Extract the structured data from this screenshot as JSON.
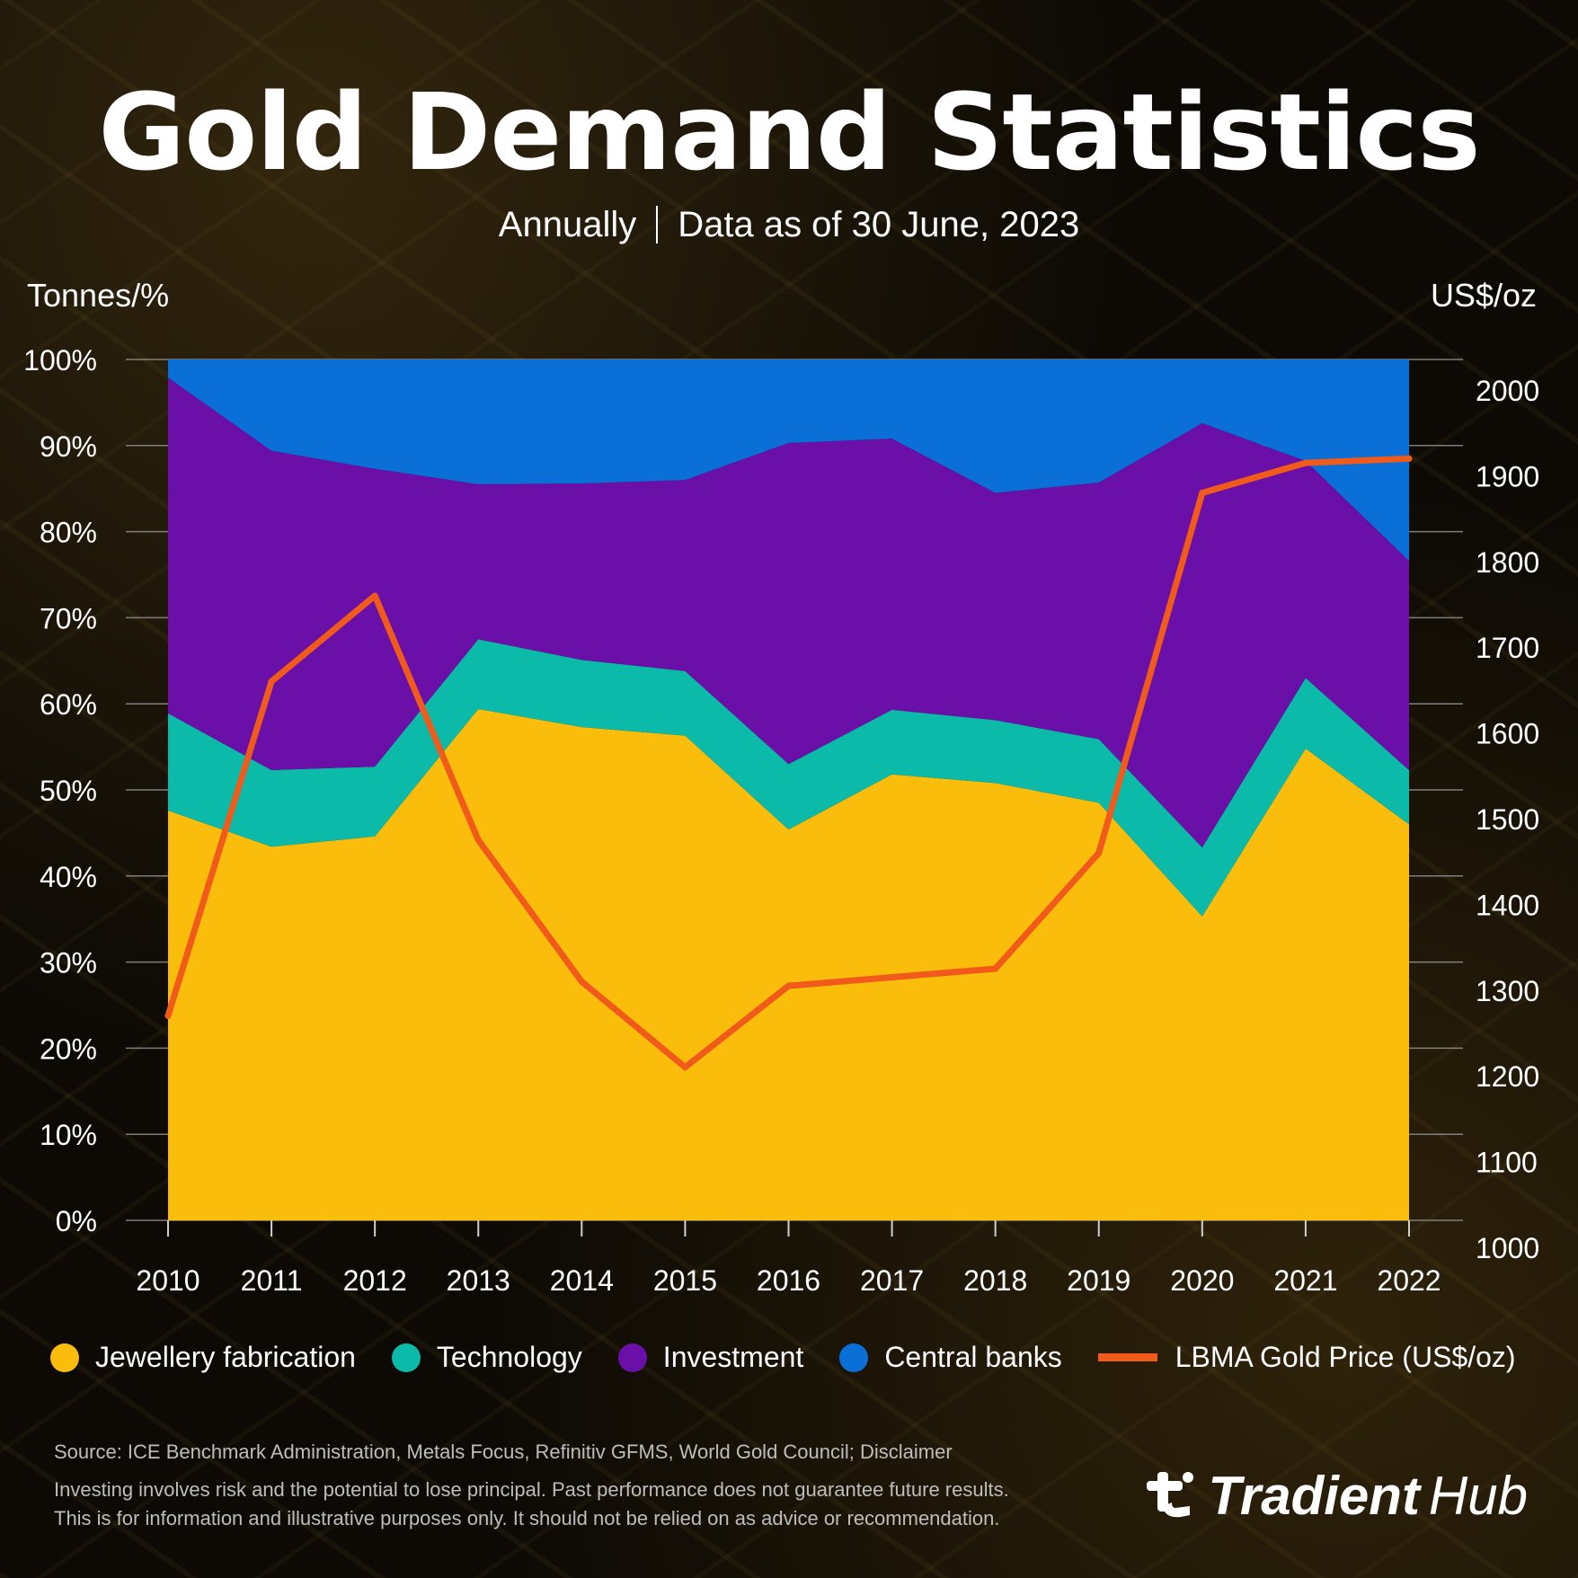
{
  "title": "Gold Demand Statistics",
  "subtitle_left": "Annually",
  "subtitle_right": "Data as of 30 June, 2023",
  "left_axis_unit": "Tonnes/%",
  "right_axis_unit": "US$/oz",
  "colors": {
    "jewellery": "#fbbd0b",
    "technology": "#0bbaa8",
    "investment": "#6a10a8",
    "central_banks": "#0a6fd6",
    "price_line": "#f05a1a"
  },
  "legend": [
    {
      "name": "Jewellery fabrication",
      "color": "#fbbd0b",
      "kind": "dot"
    },
    {
      "name": "Technology",
      "color": "#0bbaa8",
      "kind": "dot"
    },
    {
      "name": "Investment",
      "color": "#6a10a8",
      "kind": "dot"
    },
    {
      "name": "Central banks",
      "color": "#0a6fd6",
      "kind": "dot"
    },
    {
      "name": "LBMA Gold Price (US$/oz)",
      "color": "#f05a1a",
      "kind": "line"
    }
  ],
  "chart_data": {
    "type": "area",
    "stacked": true,
    "x": [
      "2010",
      "2011",
      "2012",
      "2013",
      "2014",
      "2015",
      "2016",
      "2017",
      "2018",
      "2019",
      "2020",
      "2021",
      "2022"
    ],
    "left_axis": {
      "label": "Tonnes/%",
      "min": 0,
      "max": 100,
      "ticks": [
        "0%",
        "10%",
        "20%",
        "30%",
        "40%",
        "50%",
        "60%",
        "70%",
        "80%",
        "90%",
        "100%"
      ]
    },
    "right_axis": {
      "label": "US$/oz",
      "min": 1000,
      "max": 2000,
      "ticks": [
        "1000",
        "1100",
        "1200",
        "1300",
        "1400",
        "1500",
        "1600",
        "1700",
        "1800",
        "1900",
        "2000"
      ]
    },
    "series": [
      {
        "name": "Jewellery fabrication",
        "axis": "left",
        "values": [
          47.6,
          43.4,
          44.6,
          59.4,
          57.3,
          56.3,
          45.4,
          51.8,
          50.8,
          48.5,
          35.3,
          54.8,
          46.0
        ]
      },
      {
        "name": "Technology",
        "axis": "left",
        "values": [
          11.3,
          8.9,
          8.1,
          8.1,
          7.8,
          7.5,
          7.6,
          7.5,
          7.3,
          7.4,
          8.0,
          8.2,
          6.3
        ]
      },
      {
        "name": "Investment",
        "axis": "left",
        "values": [
          39.0,
          37.1,
          34.6,
          18.0,
          20.5,
          22.2,
          37.3,
          31.5,
          26.4,
          29.8,
          49.3,
          25.2,
          24.3
        ]
      },
      {
        "name": "Central banks",
        "axis": "left",
        "values": [
          2.1,
          10.6,
          12.7,
          14.5,
          14.4,
          14.0,
          9.7,
          9.2,
          15.5,
          14.3,
          7.4,
          11.8,
          23.4
        ]
      },
      {
        "name": "LBMA Gold Price (US$/oz)",
        "axis": "right",
        "type": "line",
        "values": [
          1270,
          1660,
          1760,
          1475,
          1310,
          1210,
          1305,
          1315,
          1325,
          1460,
          1880,
          1915,
          1920
        ]
      }
    ],
    "grid": true,
    "legend_position": "bottom"
  },
  "footer": {
    "source": "Source: ICE Benchmark Administration, Metals Focus, Refinitiv GFMS, World Gold Council; Disclaimer",
    "disclaimer_1": "Investing involves risk and the potential to lose principal. Past performance does not guarantee future results.",
    "disclaimer_2": "This is for information and illustrative purposes only. It should not be relied on as advice or recommendation."
  },
  "logo": {
    "brand": "Tradient",
    "suffix": "Hub",
    "icon": "tradient-logo-icon"
  }
}
